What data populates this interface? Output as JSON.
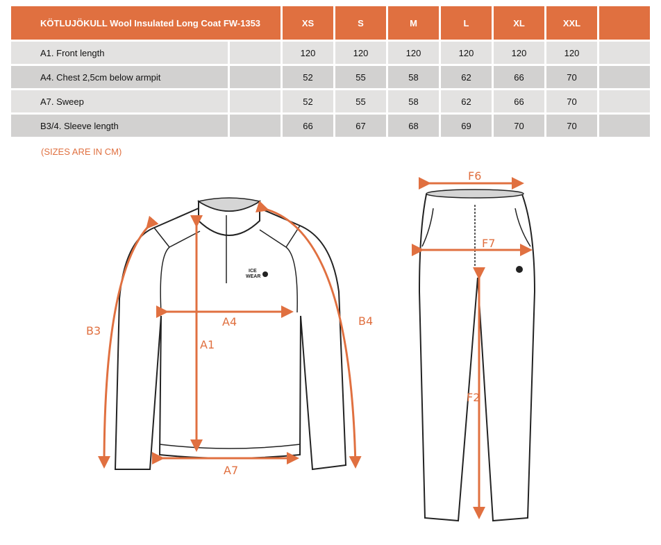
{
  "table": {
    "title": "KÖTLUJÖKULL Wool Insulated Long Coat  FW-1353",
    "sizes": [
      "XS",
      "S",
      "M",
      "L",
      "XL",
      "XXL"
    ],
    "rows": [
      {
        "label": "A1. Front length",
        "values": [
          "120",
          "120",
          "120",
          "120",
          "120",
          "120"
        ]
      },
      {
        "label": "A4. Chest 2,5cm below armpit",
        "values": [
          "52",
          "55",
          "58",
          "62",
          "66",
          "70"
        ]
      },
      {
        "label": "A7. Sweep",
        "values": [
          "52",
          "55",
          "58",
          "62",
          "66",
          "70"
        ]
      },
      {
        "label": "B3/4. Sleeve length",
        "values": [
          "66",
          "67",
          "68",
          "69",
          "70",
          "70"
        ]
      }
    ]
  },
  "note": "(SIZES ARE IN CM)",
  "diagram": {
    "jacket_labels": {
      "a1": "A1",
      "a4": "A4",
      "a7": "A7",
      "b3": "B3",
      "b4": "B4"
    },
    "pants_labels": {
      "f6": "F6",
      "f7": "F7",
      "f2": "F2"
    },
    "logo": "ICE WEAR",
    "accent_color": "#e07040"
  }
}
